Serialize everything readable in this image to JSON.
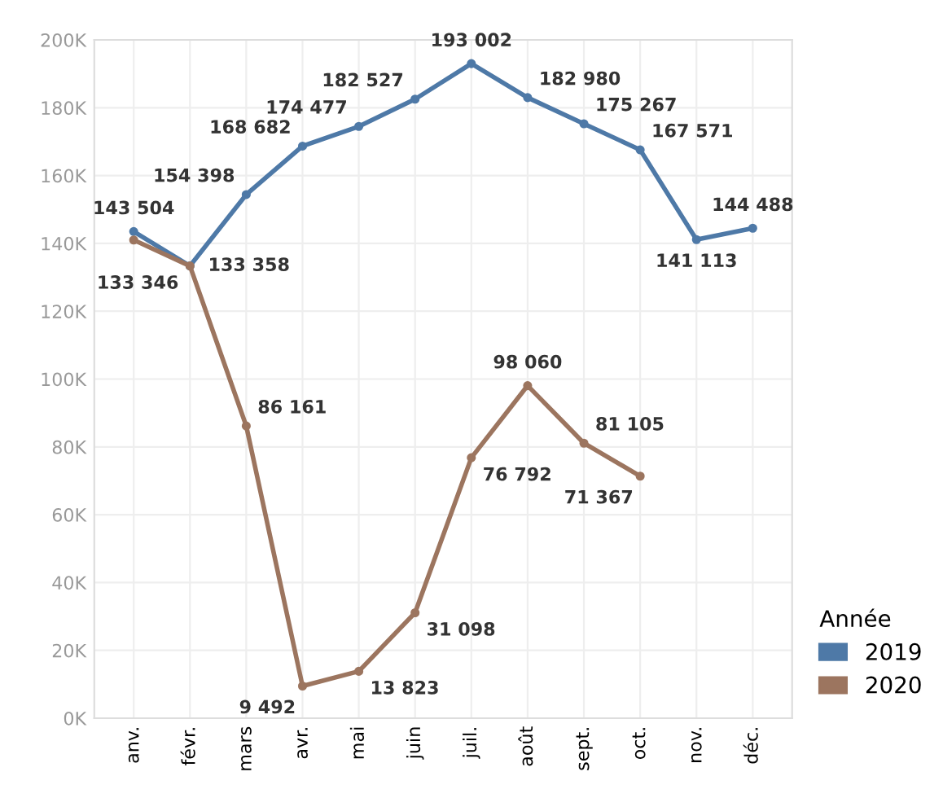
{
  "chart_data": {
    "type": "line",
    "categories": [
      "anv.",
      "févr.",
      "mars",
      "avr.",
      "mai",
      "juin",
      "juil.",
      "août",
      "sept.",
      "oct.",
      "nov.",
      "déc."
    ],
    "series": [
      {
        "name": "2019",
        "color": "#4e79a7",
        "values": [
          143504,
          133358,
          154398,
          168682,
          174477,
          182527,
          193002,
          182980,
          175267,
          167571,
          141113,
          144488
        ],
        "value_labels": [
          "143 504",
          "133 358",
          "154 398",
          "168 682",
          "174 477",
          "182 527",
          "193 002",
          "182 980",
          "175 267",
          "167 571",
          "141 113",
          "144 488"
        ]
      },
      {
        "name": "2020",
        "color": "#9c755f",
        "values": [
          141000,
          133346,
          86161,
          9492,
          13823,
          31098,
          76792,
          98060,
          81105,
          71367,
          null,
          null
        ],
        "value_labels": [
          null,
          "133 346",
          "86 161",
          "9 492",
          "13 823",
          "31 098",
          "76 792",
          "98 060",
          "81 105",
          "71 367",
          null,
          null
        ]
      }
    ],
    "ylim": [
      0,
      200000
    ],
    "yticks": [
      {
        "value": 0,
        "label": "0K"
      },
      {
        "value": 20000,
        "label": "20K"
      },
      {
        "value": 40000,
        "label": "40K"
      },
      {
        "value": 60000,
        "label": "60K"
      },
      {
        "value": 80000,
        "label": "80K"
      },
      {
        "value": 100000,
        "label": "100K"
      },
      {
        "value": 120000,
        "label": "120K"
      },
      {
        "value": 140000,
        "label": "140K"
      },
      {
        "value": 160000,
        "label": "160K"
      },
      {
        "value": 180000,
        "label": "180K"
      },
      {
        "value": 200000,
        "label": "200K"
      }
    ],
    "grid": true,
    "legend": "bottom right",
    "legend_title": "Année",
    "marker": "circle",
    "line_style": "solid"
  }
}
